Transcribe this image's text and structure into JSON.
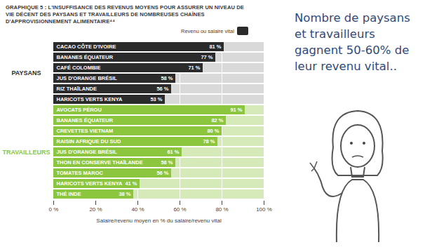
{
  "chart_data": {
    "type": "bar",
    "orientation": "horizontal",
    "title": "GRAPHIQUE 5 : L'INSUFFISANCE DES REVENUS MOYENS POUR ASSURER UN NIVEAU DE VIE DÉCENT DES PAYSANS ET TRAVAILLEURS DE NOMBREUSES CHAÎNES D'APPROVISIONNEMENT ALIMENTAIRE⁴⁴",
    "categories": [
      "CACAO CÔTE D'IVOIRE",
      "BANANES ÉQUATEUR",
      "CAFÉ COLOMBIE",
      "JUS D'ORANGE BRÉSIL",
      "RIZ THAÏLANDE",
      "HARICOTS VERTS KENYA",
      "AVOCATS PÉROU",
      "BANANES ÉQUATEUR",
      "CREVETTES VIETNAM",
      "RAISIN AFRIQUE DU SUD",
      "JUS D'ORANGE BRÉSIL",
      "THON EN CONSERVE THAÏLANDE",
      "TOMATES MAROC",
      "HARICOTS VERTS KENYA",
      "THÉ INDE"
    ],
    "series": [
      {
        "name": "PAYSANS",
        "color": "#2b2b2b",
        "values": [
          81,
          77,
          71,
          58,
          56,
          53,
          null,
          null,
          null,
          null,
          null,
          null,
          null,
          null,
          null
        ],
        "value_labels": [
          "81 %",
          "77 %",
          "71 %",
          "58 %",
          "56 %",
          "53 %",
          null,
          null,
          null,
          null,
          null,
          null,
          null,
          null,
          null
        ]
      },
      {
        "name": "TRAVAILLEURS",
        "color": "#8cc63f",
        "values": [
          null,
          null,
          null,
          null,
          null,
          null,
          91,
          82,
          80,
          78,
          61,
          58,
          56,
          41,
          38
        ],
        "value_labels": [
          null,
          null,
          null,
          null,
          null,
          null,
          "91 %",
          "82 %",
          "80 %",
          "78 %",
          "61 %",
          "58 %",
          "56 %",
          "41 %",
          "38 %"
        ]
      }
    ],
    "reference": {
      "name": "Revenu ou salaire vital",
      "value": 100,
      "colors": [
        "#d9d9d9",
        "#d5e9b9"
      ]
    },
    "xlim": [
      0,
      100
    ],
    "xticks": [
      {
        "value": 0,
        "label": "0 %"
      },
      {
        "value": 20,
        "label": "20 %"
      },
      {
        "value": 40,
        "label": "40 %"
      },
      {
        "value": 60,
        "label": "60 %"
      },
      {
        "value": 80,
        "label": "80 %"
      },
      {
        "value": 100,
        "label": "100 %"
      }
    ],
    "xlabel": "Salaire/revenu moyen en % du salaire/revenu vital",
    "data_labels": true,
    "grid": true,
    "annotations": [
      "Nombre de paysans et travailleurs gagnent 50-60% de leur revenu vital.."
    ]
  }
}
